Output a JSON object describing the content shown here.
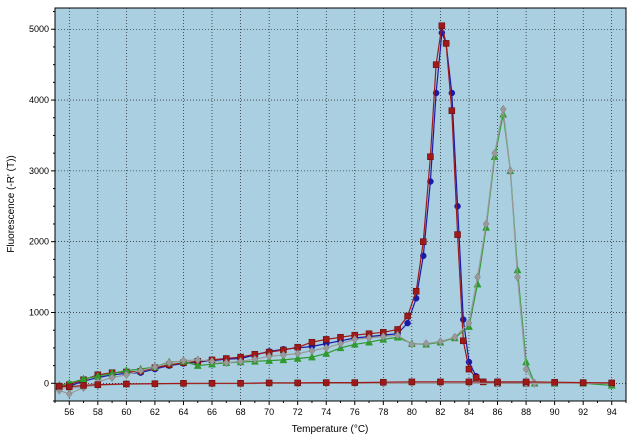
{
  "chart_data": {
    "type": "line",
    "xlabel": "Temperature (°C)",
    "ylabel": "Fluorescence (-R' (T))",
    "xlim": [
      55,
      95
    ],
    "ylim": [
      -250,
      5300
    ],
    "x_ticks": [
      56,
      58,
      60,
      62,
      64,
      66,
      68,
      70,
      72,
      74,
      76,
      78,
      80,
      82,
      84,
      86,
      88,
      90,
      92,
      94
    ],
    "y_ticks": [
      0,
      1000,
      2000,
      3000,
      4000,
      5000
    ],
    "grid": true,
    "legend": "none",
    "colors": {
      "plot_background": "#aacfe0",
      "grid": "#000000",
      "series_blue": "#1a1aa8",
      "series_red": "#a01818",
      "series_green": "#2f9a2f",
      "series_gray": "#9a9a9a"
    },
    "series": [
      {
        "color": "#1a1aa8",
        "marker": "circle",
        "x": [
          55.3,
          56,
          57,
          58,
          59,
          60,
          61,
          62,
          63,
          64,
          65,
          66,
          67,
          68,
          69,
          70,
          71,
          72,
          73,
          74,
          75,
          76,
          77,
          78,
          79,
          79.7,
          80.3,
          80.8,
          81.3,
          81.7,
          82.1,
          82.4,
          82.8,
          83.2,
          83.6,
          84.0,
          84.5,
          85.0,
          86,
          88,
          90,
          92,
          94
        ],
        "y": [
          -50,
          -40,
          30,
          80,
          120,
          140,
          150,
          200,
          250,
          280,
          300,
          320,
          340,
          350,
          400,
          450,
          480,
          500,
          520,
          560,
          600,
          640,
          660,
          680,
          700,
          850,
          1200,
          1800,
          2850,
          4100,
          4950,
          4800,
          4100,
          2500,
          900,
          300,
          100,
          20,
          0,
          0,
          0,
          0,
          0
        ]
      },
      {
        "color": "#a01818",
        "marker": "square",
        "x": [
          55.3,
          56,
          57,
          58,
          59,
          60,
          61,
          62,
          63,
          64,
          65,
          66,
          67,
          68,
          69,
          70,
          71,
          72,
          73,
          74,
          75,
          76,
          77,
          78,
          79,
          79.7,
          80.3,
          80.8,
          81.3,
          81.7,
          82.1,
          82.4,
          82.8,
          83.2,
          83.6,
          84.0,
          84.5,
          85.0,
          86,
          88,
          90,
          92,
          94
        ],
        "y": [
          -50,
          -20,
          50,
          120,
          150,
          160,
          170,
          220,
          260,
          290,
          310,
          330,
          350,
          370,
          410,
          440,
          470,
          510,
          580,
          620,
          650,
          680,
          700,
          720,
          760,
          950,
          1300,
          2000,
          3200,
          4500,
          5050,
          4800,
          3850,
          2100,
          600,
          200,
          80,
          20,
          0,
          0,
          0,
          0,
          0
        ]
      },
      {
        "color": "#2f9a2f",
        "marker": "triangle",
        "x": [
          55.3,
          56,
          57,
          58,
          59,
          60,
          61,
          62,
          63,
          64,
          65,
          66,
          67,
          68,
          69,
          70,
          71,
          72,
          73,
          74,
          75,
          76,
          77,
          78,
          79,
          80,
          81,
          82,
          83,
          84,
          84.6,
          85.2,
          85.8,
          86.4,
          86.9,
          87.4,
          88,
          88.6,
          90,
          92,
          94
        ],
        "y": [
          -30,
          0,
          60,
          100,
          140,
          180,
          200,
          230,
          300,
          310,
          250,
          270,
          290,
          300,
          310,
          320,
          330,
          350,
          370,
          420,
          500,
          550,
          580,
          620,
          650,
          560,
          550,
          580,
          640,
          800,
          1400,
          2200,
          3200,
          3800,
          3000,
          1600,
          300,
          0,
          0,
          0,
          -30
        ]
      },
      {
        "color": "#9a9a9a",
        "marker": "diamond",
        "x": [
          55.3,
          56,
          57,
          58,
          59,
          60,
          61,
          62,
          63,
          64,
          65,
          66,
          67,
          68,
          69,
          70,
          71,
          72,
          73,
          74,
          75,
          76,
          77,
          78,
          79,
          80,
          81,
          82,
          83,
          84,
          84.6,
          85.2,
          85.8,
          86.4,
          86.9,
          87.4,
          88,
          88.6,
          90,
          92,
          94
        ],
        "y": [
          -100,
          -150,
          -60,
          20,
          80,
          120,
          180,
          230,
          290,
          320,
          330,
          310,
          290,
          310,
          340,
          380,
          400,
          420,
          460,
          500,
          560,
          620,
          640,
          660,
          680,
          550,
          560,
          590,
          650,
          850,
          1500,
          2250,
          3250,
          3870,
          3000,
          1500,
          200,
          0,
          0,
          0,
          0
        ]
      },
      {
        "color": "#9a9a9a",
        "marker": "diamond",
        "x": [
          55.3,
          56,
          57,
          58,
          60,
          62,
          64,
          66,
          68,
          70,
          72,
          74,
          76,
          78,
          80,
          82,
          84,
          86,
          88,
          90,
          92,
          94
        ],
        "y": [
          -60,
          -70,
          -50,
          -30,
          -10,
          -10,
          -10,
          -5,
          -5,
          0,
          0,
          0,
          0,
          0,
          0,
          0,
          0,
          0,
          0,
          0,
          0,
          0
        ]
      },
      {
        "color": "#a01818",
        "marker": "square",
        "x": [
          55.3,
          56,
          57,
          58,
          60,
          62,
          64,
          66,
          68,
          70,
          72,
          74,
          76,
          78,
          80,
          82,
          84,
          86,
          88,
          90,
          92,
          94
        ],
        "y": [
          -40,
          -50,
          -30,
          -20,
          -10,
          -5,
          0,
          0,
          0,
          5,
          5,
          10,
          10,
          15,
          20,
          20,
          20,
          20,
          20,
          15,
          10,
          5
        ]
      }
    ]
  }
}
